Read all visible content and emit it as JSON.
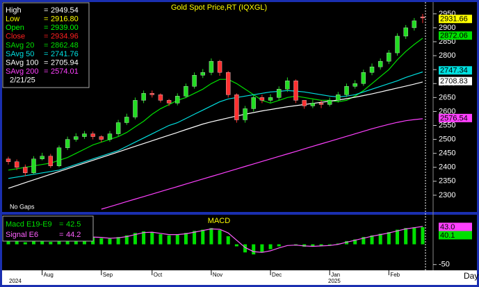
{
  "chart_data": [
    {
      "type": "candlestick",
      "title": "Gold Spot Price,RT (IQXGL)",
      "note": "No Gaps",
      "x_label": "Day",
      "year_labels": [
        "2024",
        "2025"
      ],
      "categories": [
        null,
        null,
        null,
        null,
        "Aug",
        null,
        null,
        null,
        null,
        null,
        null,
        "Sep",
        null,
        null,
        null,
        null,
        null,
        "Oct",
        null,
        null,
        null,
        null,
        null,
        null,
        "Nov",
        null,
        null,
        null,
        null,
        null,
        null,
        "Dec",
        null,
        null,
        null,
        null,
        null,
        null,
        "Jan",
        null,
        null,
        null,
        null,
        null,
        null,
        "Feb",
        null,
        null,
        null,
        null
      ],
      "open": [
        2430,
        2420,
        2400,
        2380,
        2430,
        2440,
        2405,
        2470,
        2500,
        2510,
        2520,
        2510,
        2500,
        2520,
        2560,
        2580,
        2640,
        2665,
        2660,
        2640,
        2630,
        2655,
        2690,
        2730,
        2740,
        2780,
        2740,
        2660,
        2570,
        2610,
        2650,
        2640,
        2650,
        2680,
        2710,
        2640,
        2620,
        2630,
        2625,
        2640,
        2660,
        2690,
        2700,
        2740,
        2760,
        2780,
        2810,
        2870,
        2900,
        2939
      ],
      "high": [
        2438,
        2428,
        2410,
        2440,
        2452,
        2448,
        2478,
        2510,
        2522,
        2530,
        2528,
        2515,
        2530,
        2570,
        2592,
        2650,
        2675,
        2675,
        2665,
        2645,
        2665,
        2700,
        2740,
        2752,
        2790,
        2785,
        2745,
        2665,
        2620,
        2660,
        2660,
        2662,
        2690,
        2722,
        2715,
        2640,
        2642,
        2640,
        2650,
        2670,
        2700,
        2712,
        2750,
        2772,
        2790,
        2820,
        2880,
        2910,
        2935,
        2949.54
      ],
      "low": [
        2410,
        2390,
        2368,
        2375,
        2425,
        2398,
        2400,
        2462,
        2492,
        2502,
        2500,
        2490,
        2492,
        2512,
        2552,
        2572,
        2630,
        2650,
        2632,
        2620,
        2622,
        2648,
        2682,
        2720,
        2730,
        2728,
        2650,
        2560,
        2560,
        2600,
        2630,
        2632,
        2640,
        2670,
        2630,
        2610,
        2612,
        2612,
        2618,
        2632,
        2652,
        2682,
        2692,
        2730,
        2750,
        2770,
        2800,
        2860,
        2890,
        2916.8
      ],
      "close": [
        2420,
        2400,
        2380,
        2430,
        2440,
        2405,
        2470,
        2500,
        2510,
        2520,
        2510,
        2500,
        2520,
        2560,
        2580,
        2640,
        2665,
        2660,
        2640,
        2630,
        2655,
        2690,
        2730,
        2740,
        2780,
        2740,
        2660,
        2570,
        2610,
        2650,
        2640,
        2650,
        2680,
        2710,
        2640,
        2620,
        2630,
        2625,
        2640,
        2660,
        2690,
        2700,
        2740,
        2760,
        2780,
        2810,
        2870,
        2900,
        2925,
        2934.96
      ],
      "up_color": "#22dd22",
      "down_color": "#ff3030",
      "series": [
        {
          "name": "SAvg 20",
          "color": "#00e000",
          "values": [
            2390,
            2395,
            2400,
            2405,
            2410,
            2415,
            2425,
            2435,
            2450,
            2465,
            2480,
            2490,
            2500,
            2510,
            2525,
            2545,
            2565,
            2590,
            2610,
            2625,
            2640,
            2650,
            2665,
            2680,
            2700,
            2715,
            2715,
            2700,
            2680,
            2660,
            2640,
            2630,
            2640,
            2650,
            2655,
            2650,
            2645,
            2640,
            2640,
            2635,
            2640,
            2655,
            2675,
            2700,
            2725,
            2750,
            2785,
            2815,
            2840,
            2862.48
          ]
        },
        {
          "name": "SAvg 50",
          "color": "#00e0e0",
          "values": [
            2360,
            2365,
            2370,
            2375,
            2380,
            2385,
            2390,
            2400,
            2410,
            2420,
            2430,
            2440,
            2450,
            2460,
            2475,
            2490,
            2505,
            2520,
            2535,
            2550,
            2560,
            2575,
            2590,
            2605,
            2620,
            2635,
            2645,
            2650,
            2655,
            2660,
            2665,
            2670,
            2672,
            2675,
            2673,
            2670,
            2665,
            2660,
            2655,
            2652,
            2655,
            2660,
            2670,
            2680,
            2690,
            2700,
            2710,
            2722,
            2732,
            2741.76
          ]
        },
        {
          "name": "SAvg 100",
          "color": "#ffffff",
          "values": [
            2325,
            2335,
            2345,
            2355,
            2365,
            2375,
            2385,
            2395,
            2405,
            2415,
            2425,
            2435,
            2445,
            2455,
            2465,
            2475,
            2485,
            2495,
            2505,
            2515,
            2525,
            2535,
            2545,
            2555,
            2563,
            2570,
            2577,
            2584,
            2590,
            2596,
            2602,
            2607,
            2612,
            2617,
            2621,
            2625,
            2629,
            2633,
            2637,
            2641,
            2646,
            2651,
            2657,
            2663,
            2670,
            2677,
            2684,
            2691,
            2698,
            2705.94
          ]
        },
        {
          "name": "SAvg 200",
          "color": "#ff40ff",
          "values": [
            null,
            null,
            null,
            null,
            null,
            null,
            null,
            null,
            null,
            null,
            null,
            2250,
            2259,
            2268,
            2277,
            2286,
            2295,
            2304,
            2313,
            2322,
            2331,
            2340,
            2349,
            2358,
            2367,
            2376,
            2385,
            2394,
            2403,
            2412,
            2421,
            2430,
            2439,
            2448,
            2457,
            2466,
            2475,
            2484,
            2493,
            2502,
            2511,
            2520,
            2529,
            2538,
            2546,
            2554,
            2561,
            2567,
            2571,
            2574.01
          ]
        }
      ],
      "ohlc_legend": [
        {
          "label": "High",
          "value": 2949.54,
          "color": "#ffffff"
        },
        {
          "label": "Low",
          "value": 2916.8,
          "value_label": "2916.80",
          "color": "#ffff00"
        },
        {
          "label": "Open",
          "value": 2939,
          "value_label": "2939.00",
          "color": "#00ff00"
        },
        {
          "label": "Close",
          "value": 2934.96,
          "color": "#ff2020"
        }
      ],
      "legend_separator": "=",
      "legend_date": "2/21/25",
      "price_markers": [
        {
          "value": 2931.66,
          "color": "#ffff00"
        },
        {
          "value": 2872.06,
          "color": "#00e000"
        },
        {
          "value": 2747.34,
          "color": "#00e0e0"
        },
        {
          "value": 2708.83,
          "color": "#ffffff"
        },
        {
          "value": 2576.54,
          "color": "#ff40ff"
        }
      ],
      "ylim": [
        2245,
        2992
      ],
      "yticks": [
        2300,
        2350,
        2400,
        2450,
        2500,
        2550,
        2600,
        2650,
        2700,
        2750,
        2800,
        2850,
        2900,
        2950
      ]
    },
    {
      "type": "bar",
      "title": "MACD",
      "series": [
        {
          "name": "Macd E19-E9",
          "color": "#00e000",
          "values": [
            10,
            8,
            5,
            8,
            10,
            6,
            10,
            15,
            18,
            20,
            18,
            15,
            14,
            18,
            22,
            28,
            32,
            30,
            25,
            22,
            24,
            28,
            33,
            36,
            40,
            35,
            20,
            -5,
            -20,
            -25,
            -20,
            -12,
            -5,
            0,
            -3,
            -6,
            -5,
            -4,
            -2,
            2,
            8,
            12,
            18,
            22,
            26,
            30,
            36,
            40,
            42,
            42.5
          ]
        },
        {
          "name": "Signal E6",
          "color": "#ff60ff",
          "values": [
            12,
            11,
            9,
            8,
            9,
            8,
            9,
            12,
            15,
            18,
            18,
            17,
            15,
            16,
            19,
            24,
            29,
            30,
            27,
            24,
            24,
            26,
            30,
            34,
            38,
            37,
            28,
            10,
            -8,
            -18,
            -20,
            -16,
            -9,
            -3,
            -2,
            -4,
            -5,
            -4,
            -3,
            0,
            5,
            10,
            15,
            20,
            24,
            28,
            33,
            38,
            41,
            44.2
          ]
        }
      ],
      "markers": [
        {
          "value": 43,
          "label": "43.0",
          "color": "#ff40ff"
        },
        {
          "value": 40.1,
          "color": "#00e000"
        }
      ],
      "ylim": [
        -62.5,
        73
      ],
      "yticks": [
        -50
      ]
    }
  ]
}
